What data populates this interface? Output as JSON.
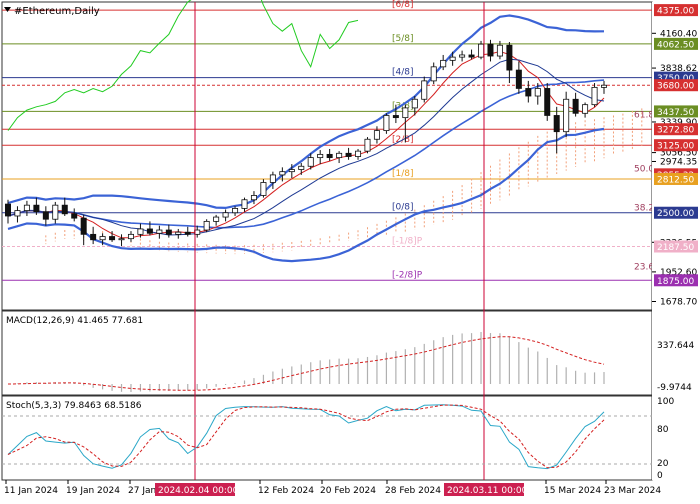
{
  "window": {
    "title": "#Ethereum,Daily"
  },
  "colors": {
    "bollinger": "#3b63d6",
    "ma_red": "#d42020",
    "ma_dark": "#1f3a93",
    "lagging": "#22cc22",
    "cloud": "#f2a07a",
    "candle_up": "#ffffff",
    "candle_down": "#111111",
    "marker_line": "#cc0033",
    "label_red": "#d63030",
    "label_olive": "#6b8e23",
    "label_navy": "#2b3a90",
    "label_pink": "#f0b0c8"
  },
  "price_axis": {
    "ticks": [
      "4160.40",
      "3838.62",
      "3339.90",
      "3056.50",
      "2974.35",
      "2226.55",
      "1952.60",
      "1678.70"
    ],
    "levels": [
      {
        "value": "4375.00",
        "color": "#d63030"
      },
      {
        "value": "4062.50",
        "color": "#6b8e23"
      },
      {
        "value": "3750.00",
        "color": "#2b3a90"
      },
      {
        "value": "3680.00",
        "color": "#d63030"
      },
      {
        "value": "3437.50",
        "color": "#6b8e23"
      },
      {
        "value": "3272.80",
        "color": "#d63030"
      },
      {
        "value": "3125.00",
        "color": "#d63030"
      },
      {
        "value": "2855.32",
        "color": "#d63030"
      },
      {
        "value": "2812.50",
        "color": "#e8a020"
      },
      {
        "value": "2500.00",
        "color": "#2b3a90"
      },
      {
        "value": "2187.50",
        "color": "#f0b0c8"
      },
      {
        "value": "1875.00",
        "color": "#9b30b0"
      }
    ]
  },
  "murrey": [
    {
      "label": "[6/8]",
      "value": 4375.0,
      "color": "#d63030"
    },
    {
      "label": "[5/8]",
      "value": 4062.5,
      "color": "#6b8e23"
    },
    {
      "label": "[4/8]",
      "value": 3750.0,
      "color": "#2b3a90"
    },
    {
      "label": "[3/8]",
      "value": 3437.5,
      "color": "#6b8e23"
    },
    {
      "label": "[2/8]",
      "value": 3125.0,
      "color": "#d63030"
    },
    {
      "label": "[1/8]",
      "value": 2812.5,
      "color": "#e8a020"
    },
    {
      "label": "[0/8]",
      "value": 2500.0,
      "color": "#2b3a90"
    },
    {
      "label": "[-1/8]P",
      "value": 2187.5,
      "color": "#f0b0c8"
    },
    {
      "label": "[-2/8]P",
      "value": 1875.0,
      "color": "#9b30b0"
    }
  ],
  "fib_labels": [
    {
      "label": "61.8",
      "value": 3380.0
    },
    {
      "label": "50.0",
      "value": 2880.0
    },
    {
      "label": "38.2",
      "value": 2520.0
    },
    {
      "label": "23.6",
      "value": 1975.0
    }
  ],
  "macd": {
    "label": "MACD(12,26,9) 41.465 77.681",
    "ticks": [
      "337.644",
      "-9.9744"
    ]
  },
  "stoch": {
    "label": "Stoch(5,3,3) 79.8463 68.5186",
    "ticks": [
      "100",
      "80",
      "20",
      "0"
    ]
  },
  "time_axis": {
    "labels": [
      "11 Jan 2024",
      "19 Jan 2024",
      "27 Jan 2024",
      "12 Feb 2024",
      "20 Feb 2024",
      "28 Feb 2024",
      "15 Mar 2024",
      "23 Mar 2024"
    ],
    "markers": [
      "2024.02.04 00:00",
      "2024.03.11 00:00"
    ]
  },
  "chart_data": {
    "type": "candlestick",
    "title": "#Ethereum,Daily",
    "ylim": [
      1600,
      4450
    ],
    "ohlc": [
      [
        2580,
        2620,
        2400,
        2470
      ],
      [
        2470,
        2560,
        2410,
        2520
      ],
      [
        2520,
        2610,
        2470,
        2570
      ],
      [
        2570,
        2640,
        2480,
        2510
      ],
      [
        2510,
        2560,
        2380,
        2440
      ],
      [
        2440,
        2600,
        2400,
        2570
      ],
      [
        2570,
        2640,
        2470,
        2490
      ],
      [
        2490,
        2540,
        2420,
        2450
      ],
      [
        2450,
        2480,
        2200,
        2300
      ],
      [
        2300,
        2370,
        2210,
        2250
      ],
      [
        2250,
        2310,
        2200,
        2280
      ],
      [
        2280,
        2330,
        2230,
        2250
      ],
      [
        2250,
        2300,
        2190,
        2260
      ],
      [
        2260,
        2330,
        2230,
        2300
      ],
      [
        2300,
        2400,
        2270,
        2350
      ],
      [
        2350,
        2420,
        2290,
        2310
      ],
      [
        2310,
        2380,
        2260,
        2340
      ],
      [
        2340,
        2390,
        2270,
        2300
      ],
      [
        2300,
        2350,
        2260,
        2320
      ],
      [
        2320,
        2370,
        2280,
        2300
      ],
      [
        2300,
        2380,
        2270,
        2340
      ],
      [
        2340,
        2440,
        2320,
        2420
      ],
      [
        2420,
        2480,
        2380,
        2460
      ],
      [
        2460,
        2530,
        2420,
        2500
      ],
      [
        2500,
        2560,
        2470,
        2540
      ],
      [
        2540,
        2640,
        2510,
        2620
      ],
      [
        2620,
        2700,
        2580,
        2660
      ],
      [
        2660,
        2810,
        2640,
        2780
      ],
      [
        2780,
        2880,
        2720,
        2850
      ],
      [
        2850,
        2920,
        2790,
        2880
      ],
      [
        2880,
        2950,
        2820,
        2900
      ],
      [
        2900,
        2960,
        2850,
        2930
      ],
      [
        2930,
        3050,
        2900,
        3010
      ],
      [
        3010,
        3080,
        2950,
        3040
      ],
      [
        3040,
        3090,
        2980,
        3010
      ],
      [
        3010,
        3070,
        2960,
        3050
      ],
      [
        3050,
        3100,
        2990,
        3020
      ],
      [
        3020,
        3090,
        2990,
        3070
      ],
      [
        3070,
        3200,
        3050,
        3180
      ],
      [
        3180,
        3300,
        3140,
        3260
      ],
      [
        3260,
        3420,
        3230,
        3400
      ],
      [
        3400,
        3500,
        3330,
        3380
      ],
      [
        3380,
        3500,
        3150,
        3470
      ],
      [
        3470,
        3580,
        3400,
        3550
      ],
      [
        3550,
        3760,
        3520,
        3720
      ],
      [
        3720,
        3890,
        3690,
        3850
      ],
      [
        3850,
        3960,
        3820,
        3910
      ],
      [
        3910,
        3990,
        3860,
        3940
      ],
      [
        3940,
        4000,
        3900,
        3960
      ],
      [
        3960,
        4010,
        3920,
        3940
      ],
      [
        3940,
        4090,
        3920,
        4060
      ],
      [
        4060,
        4100,
        3900,
        3950
      ],
      [
        3950,
        4090,
        3920,
        4050
      ],
      [
        4050,
        4080,
        3700,
        3820
      ],
      [
        3820,
        3900,
        3600,
        3650
      ],
      [
        3650,
        3720,
        3520,
        3580
      ],
      [
        3580,
        3700,
        3500,
        3650
      ],
      [
        3650,
        3700,
        3350,
        3400
      ],
      [
        3400,
        3480,
        3050,
        3250
      ],
      [
        3250,
        3620,
        3200,
        3550
      ],
      [
        3550,
        3610,
        3390,
        3420
      ],
      [
        3420,
        3520,
        3380,
        3500
      ],
      [
        3500,
        3700,
        3480,
        3660
      ],
      [
        3660,
        3720,
        3600,
        3680
      ]
    ]
  }
}
